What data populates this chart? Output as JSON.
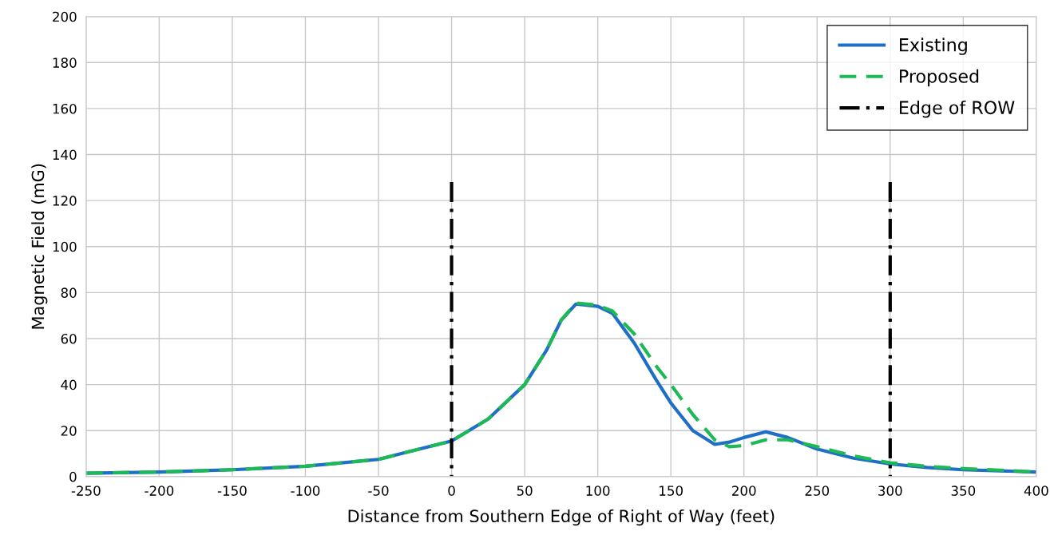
{
  "chart_data": {
    "type": "line",
    "xlabel": "Distance from Southern Edge of Right of Way (feet)",
    "ylabel": "Magnetic Field (mG)",
    "xlim": [
      -250,
      400
    ],
    "xticks": [
      -250,
      -200,
      -150,
      -100,
      -50,
      0,
      50,
      100,
      150,
      200,
      250,
      300,
      350,
      400
    ],
    "ylim": [
      0,
      200
    ],
    "yticks": [
      0,
      20,
      40,
      60,
      80,
      100,
      120,
      140,
      160,
      180,
      200
    ],
    "grid": true,
    "legend": "top right",
    "series": [
      {
        "name": "Existing",
        "color": "#1f6fc6",
        "line_style": "solid",
        "x": [
          -250,
          -200,
          -150,
          -100,
          -50,
          0,
          25,
          50,
          65,
          75,
          85,
          100,
          110,
          125,
          140,
          150,
          165,
          180,
          190,
          200,
          215,
          230,
          250,
          275,
          300,
          325,
          350,
          375,
          400
        ],
        "values": [
          1.5,
          2,
          3,
          4.5,
          7.5,
          15.5,
          25,
          40,
          55,
          68,
          75,
          74,
          71,
          58,
          42,
          32,
          20,
          14,
          15,
          17,
          19.5,
          17,
          12,
          8,
          5.5,
          4,
          3,
          2.5,
          2
        ]
      },
      {
        "name": "Proposed",
        "color": "#1db954",
        "line_style": "dashed",
        "x": [
          -250,
          -200,
          -150,
          -100,
          -50,
          0,
          25,
          50,
          65,
          75,
          85,
          100,
          110,
          125,
          140,
          150,
          165,
          180,
          190,
          200,
          215,
          230,
          250,
          275,
          300,
          325,
          350,
          375,
          400
        ],
        "values": [
          1.5,
          2,
          3,
          4.5,
          7.5,
          15.5,
          25,
          40,
          55,
          68,
          75.5,
          74.5,
          72,
          62,
          48,
          40,
          27,
          16,
          13,
          13.5,
          16,
          16,
          13,
          9,
          6,
          4.5,
          3.5,
          2.8,
          2
        ]
      },
      {
        "name": "Edge of ROW",
        "color": "#000000",
        "line_style": "dashdot",
        "x": [
          0,
          0
        ],
        "values": [
          0,
          128
        ]
      },
      {
        "color": "#000000",
        "line_style": "dashdot",
        "x": [
          300,
          300
        ],
        "values": [
          0,
          128
        ]
      }
    ]
  }
}
